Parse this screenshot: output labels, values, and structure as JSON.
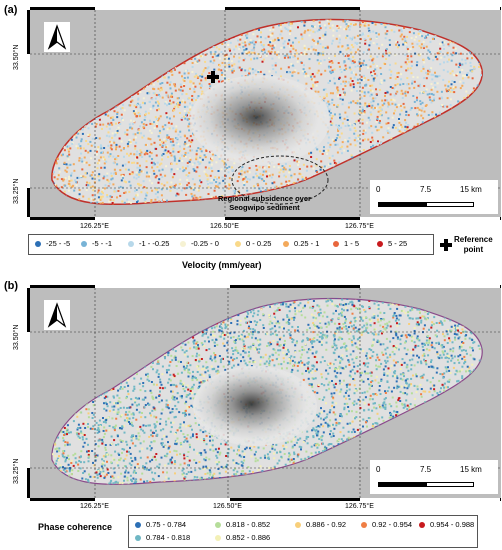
{
  "panel_a": {
    "label": "(a)",
    "lat_labels": [
      "33.50°N",
      "33.25°N"
    ],
    "lon_labels": [
      "126.25°E",
      "126.50°E",
      "126.75°E"
    ],
    "annotation_line1": "Regional subsidence over",
    "annotation_line2": "Seogwipo sediment",
    "scale_labels": [
      "0",
      "7.5",
      "15 km"
    ],
    "legend_items": [
      {
        "label": "-25 - -5",
        "color": "#2c6fb5"
      },
      {
        "label": "-5 - -1",
        "color": "#78b3d6"
      },
      {
        "label": "-1 - -0.25",
        "color": "#b7d8ea"
      },
      {
        "label": "-0.25 - 0",
        "color": "#f6f2d3"
      },
      {
        "label": "0 - 0.25",
        "color": "#f9d98a"
      },
      {
        "label": "0.25 - 1",
        "color": "#f3a95b"
      },
      {
        "label": "1 - 5",
        "color": "#e8663d"
      },
      {
        "label": "5 - 25",
        "color": "#c81a1e"
      }
    ],
    "legend_title": "Velocity (mm/year)",
    "reference_label_line1": "Reference",
    "reference_label_line2": "point"
  },
  "panel_b": {
    "label": "(b)",
    "lat_labels": [
      "33.50°N",
      "33.25°N"
    ],
    "lon_labels": [
      "126.25°E",
      "126.50°E",
      "126.75°E"
    ],
    "scale_labels": [
      "0",
      "7.5",
      "15 km"
    ],
    "legend_title": "Phase coherence",
    "legend_items": [
      {
        "label": "0.75 - 0.784",
        "color": "#2c6fb5"
      },
      {
        "label": "0.784 - 0.818",
        "color": "#6fb7c4"
      },
      {
        "label": "0.818 - 0.852",
        "color": "#b5dd9a"
      },
      {
        "label": "0.852 - 0.886",
        "color": "#f3f0b6"
      },
      {
        "label": "0.886 - 0.92",
        "color": "#f8cf7a"
      },
      {
        "label": "0.92 - 0.954",
        "color": "#ef7e45"
      },
      {
        "label": "0.954 - 0.988",
        "color": "#c81a1e"
      }
    ]
  }
}
